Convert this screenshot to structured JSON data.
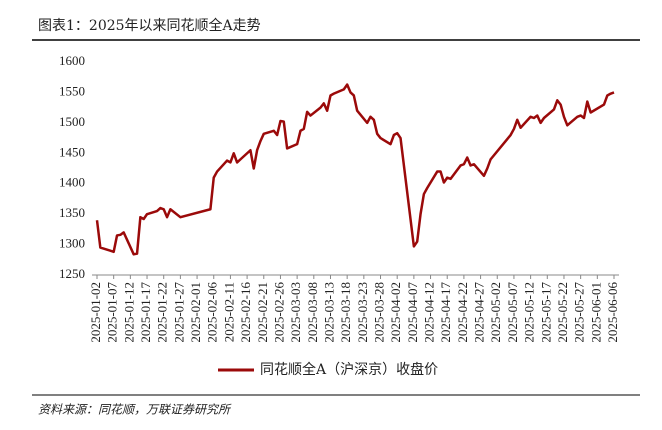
{
  "chart_data": {
    "type": "line",
    "title": "图表1：2025年以来同花顺全A走势",
    "source": "资料来源：同花顺，万联证券研究所",
    "x": [
      "2025-01-02",
      "2025-01-03",
      "2025-01-06",
      "2025-01-07",
      "2025-01-08",
      "2025-01-09",
      "2025-01-10",
      "2025-01-13",
      "2025-01-14",
      "2025-01-15",
      "2025-01-16",
      "2025-01-17",
      "2025-01-20",
      "2025-01-21",
      "2025-01-22",
      "2025-01-23",
      "2025-01-24",
      "2025-01-27",
      "2025-02-05",
      "2025-02-06",
      "2025-02-07",
      "2025-02-10",
      "2025-02-11",
      "2025-02-12",
      "2025-02-13",
      "2025-02-14",
      "2025-02-17",
      "2025-02-18",
      "2025-02-19",
      "2025-02-20",
      "2025-02-21",
      "2025-02-24",
      "2025-02-25",
      "2025-02-26",
      "2025-02-27",
      "2025-02-28",
      "2025-03-03",
      "2025-03-04",
      "2025-03-05",
      "2025-03-06",
      "2025-03-07",
      "2025-03-10",
      "2025-03-11",
      "2025-03-12",
      "2025-03-13",
      "2025-03-14",
      "2025-03-17",
      "2025-03-18",
      "2025-03-19",
      "2025-03-20",
      "2025-03-21",
      "2025-03-24",
      "2025-03-25",
      "2025-03-26",
      "2025-03-27",
      "2025-03-28",
      "2025-03-31",
      "2025-04-01",
      "2025-04-02",
      "2025-04-03",
      "2025-04-07",
      "2025-04-08",
      "2025-04-09",
      "2025-04-10",
      "2025-04-11",
      "2025-04-14",
      "2025-04-15",
      "2025-04-16",
      "2025-04-17",
      "2025-04-18",
      "2025-04-21",
      "2025-04-22",
      "2025-04-23",
      "2025-04-24",
      "2025-04-25",
      "2025-04-28",
      "2025-04-29",
      "2025-04-30",
      "2025-05-06",
      "2025-05-07",
      "2025-05-08",
      "2025-05-09",
      "2025-05-12",
      "2025-05-13",
      "2025-05-14",
      "2025-05-15",
      "2025-05-16",
      "2025-05-19",
      "2025-05-20",
      "2025-05-21",
      "2025-05-22",
      "2025-05-23",
      "2025-05-26",
      "2025-05-27",
      "2025-05-28",
      "2025-05-29",
      "2025-05-30",
      "2025-06-03",
      "2025-06-04",
      "2025-06-05",
      "2025-06-06"
    ],
    "series": [
      {
        "name": "同花顺全A（沪深京）收盘价",
        "color": "#9b0a0a",
        "values": [
          1340,
          1295,
          1290,
          1288,
          1315,
          1316,
          1320,
          1284,
          1285,
          1345,
          1342,
          1350,
          1355,
          1360,
          1358,
          1345,
          1358,
          1345,
          1358,
          1410,
          1420,
          1438,
          1435,
          1450,
          1435,
          1440,
          1455,
          1425,
          1455,
          1470,
          1482,
          1487,
          1480,
          1503,
          1502,
          1458,
          1465,
          1487,
          1490,
          1518,
          1512,
          1525,
          1532,
          1520,
          1545,
          1548,
          1555,
          1563,
          1550,
          1545,
          1520,
          1500,
          1510,
          1505,
          1482,
          1475,
          1465,
          1480,
          1483,
          1475,
          1297,
          1305,
          1350,
          1383,
          1393,
          1420,
          1420,
          1402,
          1410,
          1408,
          1430,
          1432,
          1443,
          1430,
          1432,
          1413,
          1425,
          1440,
          1480,
          1490,
          1505,
          1492,
          1510,
          1508,
          1512,
          1500,
          1508,
          1522,
          1537,
          1530,
          1510,
          1496,
          1510,
          1512,
          1508,
          1535,
          1517,
          1530,
          1545,
          1548,
          1550
        ]
      }
    ],
    "xlim": [
      "2025-01-02",
      "2025-06-06"
    ],
    "xticks": [
      "2025-01-02",
      "2025-01-07",
      "2025-01-12",
      "2025-01-17",
      "2025-01-22",
      "2025-01-27",
      "2025-02-01",
      "2025-02-06",
      "2025-02-11",
      "2025-02-16",
      "2025-02-21",
      "2025-02-26",
      "2025-03-03",
      "2025-03-08",
      "2025-03-13",
      "2025-03-18",
      "2025-03-23",
      "2025-03-28",
      "2025-04-02",
      "2025-04-07",
      "2025-04-12",
      "2025-04-17",
      "2025-04-22",
      "2025-04-27",
      "2025-05-02",
      "2025-05-07",
      "2025-05-12",
      "2025-05-17",
      "2025-05-22",
      "2025-05-27",
      "2025-06-01",
      "2025-06-06"
    ],
    "ylim": [
      1250,
      1600
    ],
    "yticks": [
      1250,
      1300,
      1350,
      1400,
      1450,
      1500,
      1550,
      1600
    ],
    "grid": false
  }
}
